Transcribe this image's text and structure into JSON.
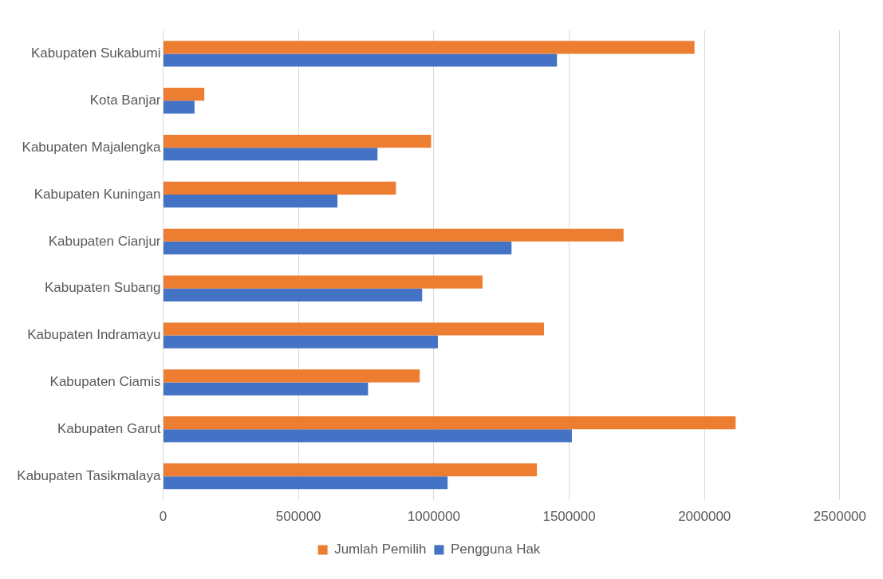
{
  "chart_data": {
    "type": "bar",
    "orientation": "horizontal",
    "categories": [
      "Kabupaten Sukabumi",
      "Kota Banjar",
      "Kabupaten Majalengka",
      "Kabupaten Kuningan",
      "Kabupaten Cianjur",
      "Kabupaten Subang",
      "Kabupaten Indramayu",
      "Kabupaten Ciamis",
      "Kabupaten Garut",
      "Kabupaten Tasikmalaya"
    ],
    "series": [
      {
        "name": "Jumlah Pemilih",
        "color": "#ed7d31",
        "values": [
          1963000,
          152000,
          990000,
          860000,
          1701000,
          1180000,
          1407000,
          948000,
          2115000,
          1381000
        ]
      },
      {
        "name": "Pengguna Hak",
        "color": "#4472c4",
        "values": [
          1455000,
          116000,
          792000,
          644000,
          1287000,
          957000,
          1015000,
          757000,
          1510000,
          1051000
        ]
      }
    ],
    "xlim": [
      0,
      2500000
    ],
    "xticks": [
      0,
      500000,
      1000000,
      1500000,
      2000000,
      2500000
    ],
    "grid": "x",
    "legend": "bottom"
  }
}
